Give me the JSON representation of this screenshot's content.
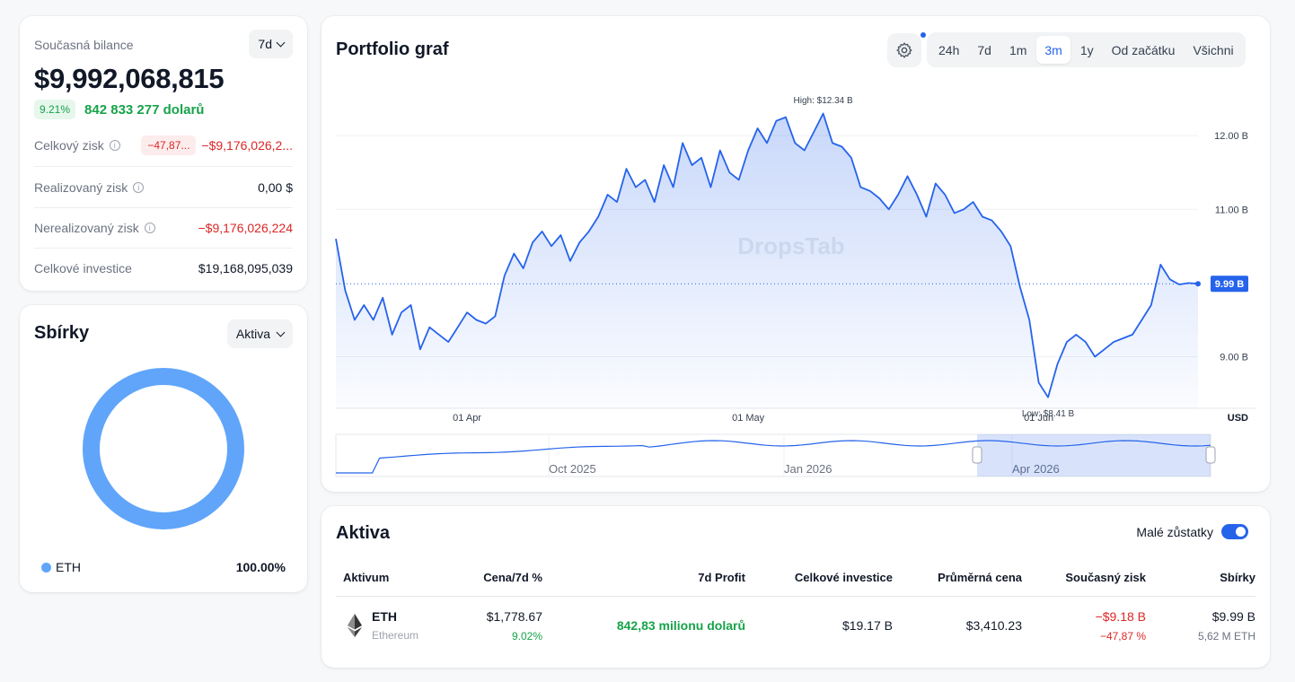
{
  "balance": {
    "label": "Současná bilance",
    "period": "7d",
    "value": "$9,992,068,815",
    "change_pct": "9.21%",
    "change_text": "842 833 277 dolarů",
    "rows": [
      {
        "label": "Celkový zisk",
        "badge": "−47,87...",
        "value": "−$9,176,026,2..."
      },
      {
        "label": "Realizovaný zisk",
        "value": "0,00 $"
      },
      {
        "label": "Nerealizovaný zisk",
        "value": "−$9,176,026,224"
      },
      {
        "label": "Celkové investice",
        "value": "$19,168,095,039"
      }
    ]
  },
  "collections": {
    "title": "Sbírky",
    "select": "Aktiva",
    "legend_label": "ETH",
    "legend_value": "100.00%",
    "ring_color": "#60a5fa"
  },
  "chart": {
    "title": "Portfolio graf",
    "tabs": [
      "24h",
      "7d",
      "1m",
      "3m",
      "1y",
      "Od začátku",
      "Všichni"
    ],
    "active_tab": "3m",
    "watermark": "DropsTab",
    "currency": "USD",
    "high_label": "High: $12.34 B",
    "low_label": "Low: $8.41 B",
    "current_label": "9.99 B",
    "accent": "#2563eb"
  },
  "chart_data": {
    "type": "area",
    "y_unit": "B USD",
    "ylim": [
      8.3,
      12.55
    ],
    "y_ticks": [
      {
        "v": 12.0,
        "label": "12.00 B"
      },
      {
        "v": 11.0,
        "label": "11.00 B"
      },
      {
        "v": 9.0,
        "label": "9.00 B"
      }
    ],
    "x_ticks": [
      {
        "day": 14,
        "label": "01 Apr"
      },
      {
        "day": 44,
        "label": "01 May"
      },
      {
        "day": 75,
        "label": "01 Jun"
      }
    ],
    "x_range_days": [
      0,
      92
    ],
    "high": 12.34,
    "low": 8.41,
    "current": 9.99,
    "values": [
      10.6,
      9.9,
      9.5,
      9.7,
      9.5,
      9.8,
      9.3,
      9.6,
      9.7,
      9.1,
      9.4,
      9.3,
      9.2,
      9.4,
      9.6,
      9.5,
      9.45,
      9.55,
      10.1,
      10.4,
      10.2,
      10.55,
      10.7,
      10.5,
      10.65,
      10.3,
      10.55,
      10.7,
      10.9,
      11.2,
      11.1,
      11.55,
      11.3,
      11.4,
      11.1,
      11.6,
      11.3,
      11.9,
      11.6,
      11.7,
      11.3,
      11.8,
      11.5,
      11.4,
      11.8,
      12.1,
      11.9,
      12.2,
      12.25,
      11.9,
      11.8,
      12.05,
      12.3,
      11.9,
      11.85,
      11.7,
      11.3,
      11.25,
      11.15,
      11.0,
      11.2,
      11.45,
      11.2,
      10.9,
      11.35,
      11.2,
      10.95,
      11.0,
      11.1,
      10.9,
      10.85,
      10.7,
      10.5,
      9.95,
      9.5,
      8.65,
      8.45,
      8.9,
      9.2,
      9.3,
      9.2,
      9.0,
      9.1,
      9.2,
      9.25,
      9.3,
      9.5,
      9.7,
      10.25,
      10.05,
      9.98,
      10.0,
      9.99
    ],
    "navigator_ticks": [
      "Oct 2025",
      "Jan 2026",
      "Apr 2026"
    ]
  },
  "assets": {
    "title": "Aktiva",
    "toggle_label": "Malé zůstatky",
    "headers": [
      "Aktivum",
      "Cena/7d %",
      "7d Profit",
      "Celkové investice",
      "Průměrná cena",
      "Současný zisk",
      "Sbírky"
    ],
    "row": {
      "symbol": "ETH",
      "name": "Ethereum",
      "price": "$1,778.67",
      "price_change": "9.02%",
      "profit_7d": "842,83 milionu dolarů",
      "investment": "$19.17 B",
      "avg_price": "$3,410.23",
      "pnl": "−$9.18 B",
      "pnl_pct": "−47,87 %",
      "holdings": "$9.99 B",
      "holdings_sub": "5,62 M ETH"
    }
  }
}
